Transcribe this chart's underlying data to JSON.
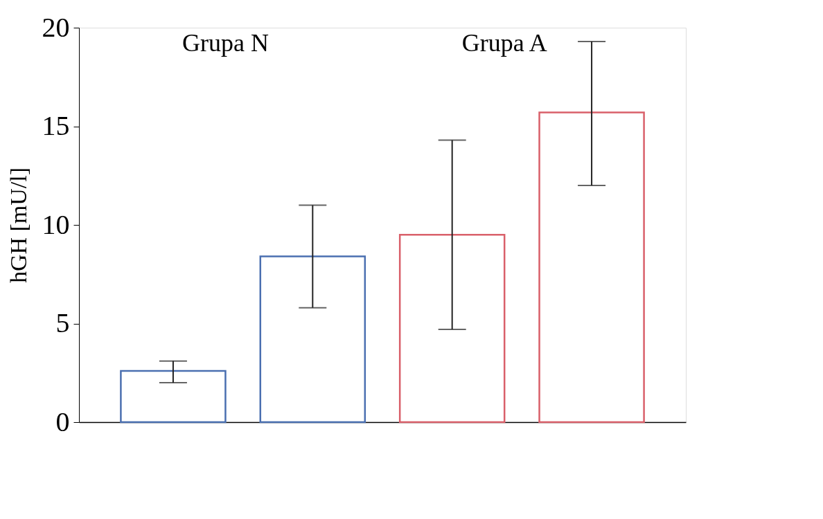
{
  "chart_data": {
    "type": "bar",
    "ylabel": "hGH [mU/l]",
    "categories": [
      null,
      null,
      null,
      null
    ],
    "values": [
      2.6,
      8.4,
      9.5,
      15.7
    ],
    "errors": [
      [
        2.0,
        3.1
      ],
      [
        5.8,
        11.0
      ],
      [
        4.7,
        14.3
      ],
      [
        12.0,
        19.3
      ]
    ],
    "colors": [
      "#4a6fb0",
      "#4a6fb0",
      "#d9606a",
      "#d9606a"
    ],
    "annotations": [
      "Grupa N",
      "Grupa A"
    ],
    "ylim": [
      0,
      20
    ],
    "yticks": [
      0,
      5,
      10,
      15,
      20
    ],
    "grid": false
  }
}
